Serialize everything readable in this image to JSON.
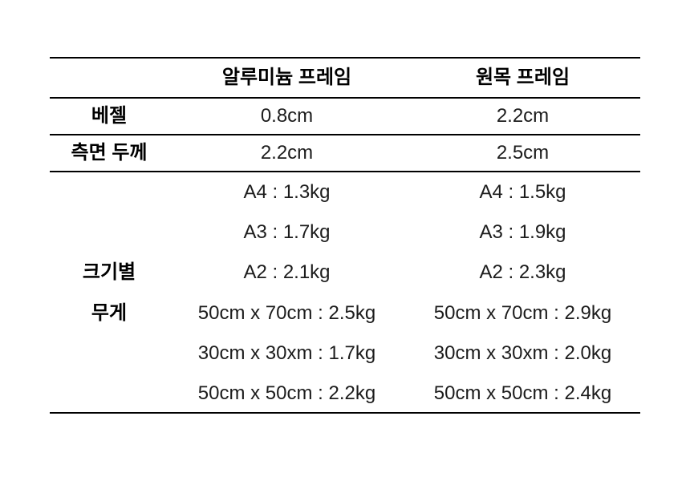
{
  "page": {
    "background_color": "#ffffff",
    "text_color": "#000000",
    "value_text_color": "#1c1c1c",
    "rule_color": "#000000"
  },
  "table": {
    "header": {
      "blank": "",
      "aluminum": "알루미늄 프레임",
      "wood": "원목 프레임"
    },
    "rows": [
      {
        "label": "베젤",
        "aluminum": "0.8cm",
        "wood": "2.2cm"
      },
      {
        "label": "측면 두께",
        "aluminum": "2.2cm",
        "wood": "2.5cm"
      },
      {
        "label_lines": [
          "크기별",
          "무게"
        ],
        "aluminum": [
          "A4 : 1.3kg",
          "A3 : 1.7kg",
          "A2 : 2.1kg",
          "50cm x 70cm : 2.5kg",
          "30cm x 30xm : 1.7kg",
          "50cm x 50cm : 2.2kg"
        ],
        "wood": [
          "A4 : 1.5kg",
          "A3 : 1.9kg",
          "A2 : 2.3kg",
          "50cm x 70cm : 2.9kg",
          "30cm x 30xm : 2.0kg",
          "50cm x 50cm : 2.4kg"
        ]
      }
    ]
  }
}
